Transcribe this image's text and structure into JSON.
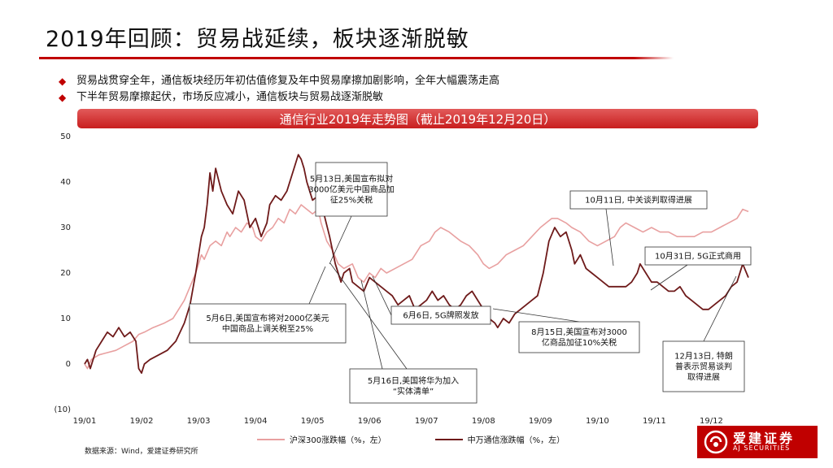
{
  "header": {
    "title": "2019年回顾：贸易战延续，板块逐渐脱敏"
  },
  "bullets": [
    "贸易战贯穿全年，通信板块经历年初估值修复及年中贸易摩擦加剧影响，全年大幅震荡走高",
    "下半年贸易摩擦起伏，市场反应减小，通信板块与贸易战逐渐脱敏"
  ],
  "chart_banner": "通信行业2019年走势图（截止2019年12月20日）",
  "colors": {
    "accent": "#c00000",
    "series1": "#e8a0a0",
    "series2": "#6e1a1a"
  },
  "chart_data": {
    "type": "line",
    "title": "通信行业2019年走势图（截止2019年12月20日）",
    "ylim": [
      -10,
      50
    ],
    "yticks": [
      -10,
      0,
      10,
      20,
      30,
      40,
      50
    ],
    "ytick_labels": [
      "(10)",
      "0",
      "10",
      "20",
      "30",
      "40",
      "50"
    ],
    "xlim": [
      0,
      11.65
    ],
    "xticks": [
      0,
      1,
      2,
      3,
      4,
      5,
      6,
      7,
      8,
      9,
      10,
      11
    ],
    "xtick_labels": [
      "19/01",
      "19/02",
      "19/03",
      "19/04",
      "19/05",
      "19/06",
      "19/07",
      "19/08",
      "19/09",
      "19/10",
      "19/11",
      "19/12"
    ],
    "grid": false,
    "legend_position": "bottom",
    "series": [
      {
        "name": "沪深300涨跌幅（%，左）",
        "points": [
          [
            0,
            0
          ],
          [
            0.05,
            -1
          ],
          [
            0.12,
            1
          ],
          [
            0.25,
            2
          ],
          [
            0.4,
            2.5
          ],
          [
            0.55,
            3
          ],
          [
            0.7,
            4
          ],
          [
            0.85,
            5
          ],
          [
            0.95,
            6.5
          ],
          [
            1.05,
            7
          ],
          [
            1.2,
            8
          ],
          [
            1.4,
            9
          ],
          [
            1.55,
            10
          ],
          [
            1.65,
            12
          ],
          [
            1.75,
            14
          ],
          [
            1.85,
            17
          ],
          [
            1.95,
            20
          ],
          [
            2.05,
            24
          ],
          [
            2.1,
            23
          ],
          [
            2.2,
            26
          ],
          [
            2.3,
            27
          ],
          [
            2.4,
            26
          ],
          [
            2.5,
            29
          ],
          [
            2.55,
            28
          ],
          [
            2.65,
            30
          ],
          [
            2.75,
            29
          ],
          [
            2.85,
            31
          ],
          [
            2.95,
            30
          ],
          [
            3.0,
            28
          ],
          [
            3.1,
            27
          ],
          [
            3.2,
            29
          ],
          [
            3.3,
            30
          ],
          [
            3.4,
            32
          ],
          [
            3.5,
            31
          ],
          [
            3.6,
            34
          ],
          [
            3.7,
            33
          ],
          [
            3.8,
            35
          ],
          [
            3.9,
            34
          ],
          [
            4.0,
            33
          ],
          [
            4.1,
            34
          ],
          [
            4.15,
            31
          ],
          [
            4.25,
            27
          ],
          [
            4.35,
            25
          ],
          [
            4.45,
            22
          ],
          [
            4.55,
            21
          ],
          [
            4.7,
            22
          ],
          [
            4.8,
            19
          ],
          [
            4.9,
            18
          ],
          [
            5.0,
            20
          ],
          [
            5.1,
            19
          ],
          [
            5.2,
            21
          ],
          [
            5.3,
            20
          ],
          [
            5.45,
            21
          ],
          [
            5.6,
            22
          ],
          [
            5.75,
            23
          ],
          [
            5.9,
            26
          ],
          [
            6.05,
            27
          ],
          [
            6.15,
            29
          ],
          [
            6.25,
            30
          ],
          [
            6.4,
            29
          ],
          [
            6.5,
            28
          ],
          [
            6.6,
            27
          ],
          [
            6.75,
            26
          ],
          [
            6.9,
            24
          ],
          [
            7.0,
            22
          ],
          [
            7.1,
            21
          ],
          [
            7.25,
            22
          ],
          [
            7.4,
            24
          ],
          [
            7.55,
            25
          ],
          [
            7.7,
            26
          ],
          [
            7.85,
            28
          ],
          [
            8.0,
            30
          ],
          [
            8.1,
            31
          ],
          [
            8.2,
            32
          ],
          [
            8.3,
            32
          ],
          [
            8.45,
            31
          ],
          [
            8.55,
            30
          ],
          [
            8.7,
            29
          ],
          [
            8.85,
            27
          ],
          [
            9.0,
            26
          ],
          [
            9.15,
            27
          ],
          [
            9.3,
            28
          ],
          [
            9.4,
            30
          ],
          [
            9.5,
            31
          ],
          [
            9.65,
            30
          ],
          [
            9.8,
            29
          ],
          [
            9.95,
            30
          ],
          [
            10.1,
            29
          ],
          [
            10.25,
            29
          ],
          [
            10.4,
            28
          ],
          [
            10.55,
            28
          ],
          [
            10.7,
            28
          ],
          [
            10.85,
            29
          ],
          [
            11.0,
            29
          ],
          [
            11.15,
            30
          ],
          [
            11.3,
            31
          ],
          [
            11.45,
            32
          ],
          [
            11.55,
            34
          ],
          [
            11.65,
            33.5
          ]
        ]
      },
      {
        "name": "中万通信涨跌幅（%，左）",
        "points": [
          [
            0,
            0
          ],
          [
            0.05,
            1
          ],
          [
            0.1,
            -1
          ],
          [
            0.2,
            3
          ],
          [
            0.3,
            5
          ],
          [
            0.4,
            7
          ],
          [
            0.5,
            6
          ],
          [
            0.6,
            8
          ],
          [
            0.7,
            6
          ],
          [
            0.8,
            7
          ],
          [
            0.9,
            5
          ],
          [
            0.95,
            -1
          ],
          [
            1.0,
            -2
          ],
          [
            1.05,
            0
          ],
          [
            1.15,
            1
          ],
          [
            1.3,
            2
          ],
          [
            1.45,
            3
          ],
          [
            1.6,
            5
          ],
          [
            1.75,
            9
          ],
          [
            1.85,
            13
          ],
          [
            1.95,
            20
          ],
          [
            2.05,
            28
          ],
          [
            2.1,
            30
          ],
          [
            2.15,
            35
          ],
          [
            2.2,
            42
          ],
          [
            2.25,
            38
          ],
          [
            2.3,
            43
          ],
          [
            2.4,
            38
          ],
          [
            2.5,
            35
          ],
          [
            2.6,
            33
          ],
          [
            2.7,
            38
          ],
          [
            2.8,
            36
          ],
          [
            2.9,
            30
          ],
          [
            3.0,
            32
          ],
          [
            3.1,
            28
          ],
          [
            3.2,
            31
          ],
          [
            3.25,
            35
          ],
          [
            3.35,
            37
          ],
          [
            3.45,
            36
          ],
          [
            3.55,
            38
          ],
          [
            3.6,
            40
          ],
          [
            3.7,
            44
          ],
          [
            3.75,
            46
          ],
          [
            3.8,
            45
          ],
          [
            3.85,
            43
          ],
          [
            3.9,
            40
          ],
          [
            3.95,
            38
          ],
          [
            4.0,
            36
          ],
          [
            4.1,
            37
          ],
          [
            4.2,
            33
          ],
          [
            4.3,
            28
          ],
          [
            4.4,
            22
          ],
          [
            4.5,
            18
          ],
          [
            4.55,
            20
          ],
          [
            4.65,
            21
          ],
          [
            4.7,
            18
          ],
          [
            4.8,
            17
          ],
          [
            4.9,
            16
          ],
          [
            5.0,
            19
          ],
          [
            5.1,
            18
          ],
          [
            5.2,
            17
          ],
          [
            5.3,
            16
          ],
          [
            5.4,
            15
          ],
          [
            5.5,
            13
          ],
          [
            5.6,
            14
          ],
          [
            5.7,
            15
          ],
          [
            5.8,
            12
          ],
          [
            5.9,
            13
          ],
          [
            6.0,
            14
          ],
          [
            6.1,
            16
          ],
          [
            6.2,
            14
          ],
          [
            6.3,
            15
          ],
          [
            6.4,
            13
          ],
          [
            6.5,
            12
          ],
          [
            6.6,
            13
          ],
          [
            6.7,
            15
          ],
          [
            6.8,
            16
          ],
          [
            6.9,
            14
          ],
          [
            7.0,
            12
          ],
          [
            7.1,
            10
          ],
          [
            7.2,
            9
          ],
          [
            7.25,
            8
          ],
          [
            7.35,
            10
          ],
          [
            7.45,
            9
          ],
          [
            7.55,
            11
          ],
          [
            7.65,
            12
          ],
          [
            7.75,
            13
          ],
          [
            7.85,
            14
          ],
          [
            7.95,
            15
          ],
          [
            8.05,
            20
          ],
          [
            8.15,
            27
          ],
          [
            8.25,
            30
          ],
          [
            8.35,
            28
          ],
          [
            8.45,
            29
          ],
          [
            8.55,
            25
          ],
          [
            8.6,
            22
          ],
          [
            8.7,
            24
          ],
          [
            8.8,
            21
          ],
          [
            8.9,
            20
          ],
          [
            9.0,
            19
          ],
          [
            9.1,
            18
          ],
          [
            9.2,
            17
          ],
          [
            9.3,
            17
          ],
          [
            9.4,
            17
          ],
          [
            9.5,
            17
          ],
          [
            9.6,
            18
          ],
          [
            9.7,
            20
          ],
          [
            9.75,
            22
          ],
          [
            9.85,
            20
          ],
          [
            9.95,
            18
          ],
          [
            10.05,
            18
          ],
          [
            10.15,
            17
          ],
          [
            10.25,
            16
          ],
          [
            10.35,
            16
          ],
          [
            10.45,
            17
          ],
          [
            10.55,
            15
          ],
          [
            10.65,
            14
          ],
          [
            10.75,
            13
          ],
          [
            10.85,
            12
          ],
          [
            10.95,
            12
          ],
          [
            11.05,
            13
          ],
          [
            11.15,
            14
          ],
          [
            11.25,
            15
          ],
          [
            11.35,
            17
          ],
          [
            11.45,
            18
          ],
          [
            11.55,
            22
          ],
          [
            11.65,
            19
          ]
        ]
      }
    ],
    "annotations": [
      {
        "text": [
          "5月13日,美国宣布拟对",
          "3000亿美元中国商品加",
          "征25%关税"
        ],
        "x": 4.25,
        "y": 21
      },
      {
        "text": [
          "5月6日,美国宣布将对2000亿美元",
          "中国商品上调关税至25%"
        ],
        "x": 4.1,
        "y": 19.5
      },
      {
        "text": [
          "5月16日,美国将华为加入",
          "“实体清单”"
        ],
        "x": 4.3,
        "y": 20
      },
      {
        "text": [
          "6月6日, 5G牌照发放"
        ],
        "x": 5.0,
        "y": 19
      },
      {
        "text": [
          "8月15日,美国宣布对3000",
          "亿商品加征10%关税"
        ],
        "x": 7.55,
        "y": 10
      },
      {
        "text": [
          "10月11日, 中关谈判取得进展"
        ],
        "x": 9.3,
        "y": 20
      },
      {
        "text": [
          "10月31日, 5G正式商用"
        ],
        "x": 10.0,
        "y": 16
      },
      {
        "text": [
          "12月13日, 特朗",
          "普表示贸易谈判",
          "取得进展"
        ],
        "x": 11.45,
        "y": 18
      }
    ]
  },
  "legend": [
    {
      "label": "沪深300涨跌幅（%，左）"
    },
    {
      "label": "中万通信涨跌幅（%，左）"
    }
  ],
  "source": "数据来源：Wind，爱建证券研究所",
  "logo": {
    "cn": "爱建证券",
    "en": "AJ SECURITIES"
  }
}
